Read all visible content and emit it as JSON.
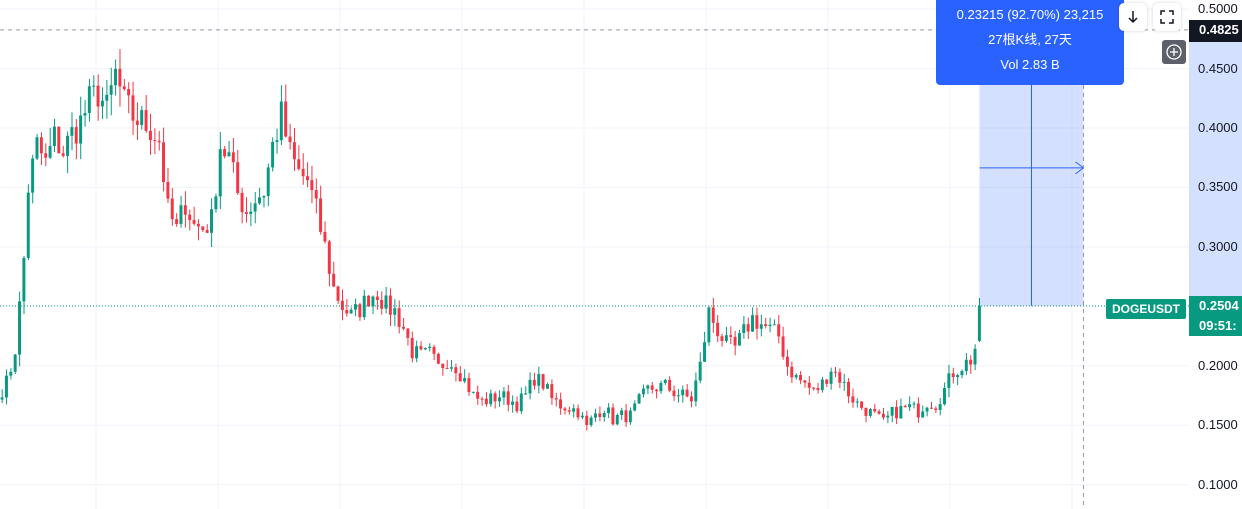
{
  "chart_data": {
    "type": "candlestick",
    "symbol": "DOGEUSDT",
    "y_ticks": [
      "0.5000",
      "0.4500",
      "0.4000",
      "0.3500",
      "0.3000",
      "0.2000",
      "0.1500",
      "0.1000"
    ],
    "ylim": [
      0.0796,
      0.5076
    ],
    "current_price_label": "0.2504",
    "current_price": 0.2504,
    "countdown_label": "09:51:",
    "crosshair_price_label": "0.4825",
    "crosshair_price": 0.4825,
    "measure": {
      "line1": "0.23215 (92.70%) 23,215",
      "line2": "27根K线, 27天",
      "line3": "Vol 2.83 B",
      "from_price": 0.2504,
      "to_price": 0.4825,
      "bars": 27
    },
    "grid": true,
    "anchors": [
      [
        0,
        0.18
      ],
      [
        1,
        0.186
      ],
      [
        2,
        0.198
      ],
      [
        3,
        0.214
      ],
      [
        4,
        0.25
      ],
      [
        5,
        0.29
      ],
      [
        6,
        0.35
      ],
      [
        8,
        0.385
      ],
      [
        10,
        0.37
      ],
      [
        12,
        0.392
      ],
      [
        14,
        0.38
      ],
      [
        16,
        0.395
      ],
      [
        18,
        0.405
      ],
      [
        20,
        0.422
      ],
      [
        22,
        0.43
      ],
      [
        24,
        0.415
      ],
      [
        26,
        0.445
      ],
      [
        28,
        0.42
      ],
      [
        30,
        0.41
      ],
      [
        32,
        0.405
      ],
      [
        34,
        0.4
      ],
      [
        36,
        0.39
      ],
      [
        38,
        0.33
      ],
      [
        40,
        0.314
      ],
      [
        42,
        0.338
      ],
      [
        44,
        0.318
      ],
      [
        46,
        0.316
      ],
      [
        48,
        0.322
      ],
      [
        50,
        0.386
      ],
      [
        52,
        0.375
      ],
      [
        54,
        0.345
      ],
      [
        56,
        0.33
      ],
      [
        58,
        0.34
      ],
      [
        60,
        0.347
      ],
      [
        62,
        0.385
      ],
      [
        64,
        0.41
      ],
      [
        66,
        0.378
      ],
      [
        68,
        0.362
      ],
      [
        70,
        0.356
      ],
      [
        72,
        0.33
      ],
      [
        74,
        0.3
      ],
      [
        76,
        0.265
      ],
      [
        78,
        0.25
      ],
      [
        80,
        0.242
      ],
      [
        82,
        0.248
      ],
      [
        84,
        0.258
      ],
      [
        86,
        0.262
      ],
      [
        88,
        0.25
      ],
      [
        90,
        0.246
      ],
      [
        92,
        0.232
      ],
      [
        94,
        0.212
      ],
      [
        96,
        0.208
      ],
      [
        98,
        0.21
      ],
      [
        100,
        0.198
      ],
      [
        102,
        0.205
      ],
      [
        104,
        0.2
      ],
      [
        106,
        0.188
      ],
      [
        108,
        0.175
      ],
      [
        110,
        0.17
      ],
      [
        112,
        0.172
      ],
      [
        114,
        0.175
      ],
      [
        116,
        0.172
      ],
      [
        118,
        0.168
      ],
      [
        120,
        0.175
      ],
      [
        122,
        0.19
      ],
      [
        124,
        0.185
      ],
      [
        126,
        0.172
      ],
      [
        128,
        0.167
      ],
      [
        130,
        0.165
      ],
      [
        132,
        0.162
      ],
      [
        134,
        0.148
      ],
      [
        136,
        0.16
      ],
      [
        138,
        0.165
      ],
      [
        140,
        0.155
      ],
      [
        142,
        0.158
      ],
      [
        144,
        0.158
      ],
      [
        146,
        0.17
      ],
      [
        148,
        0.18
      ],
      [
        150,
        0.182
      ],
      [
        152,
        0.183
      ],
      [
        154,
        0.178
      ],
      [
        156,
        0.175
      ],
      [
        158,
        0.172
      ],
      [
        160,
        0.2
      ],
      [
        162,
        0.245
      ],
      [
        164,
        0.23
      ],
      [
        166,
        0.218
      ],
      [
        168,
        0.215
      ],
      [
        170,
        0.228
      ],
      [
        172,
        0.24
      ],
      [
        174,
        0.235
      ],
      [
        176,
        0.23
      ],
      [
        178,
        0.225
      ],
      [
        180,
        0.2
      ],
      [
        182,
        0.19
      ],
      [
        184,
        0.185
      ],
      [
        186,
        0.178
      ],
      [
        188,
        0.185
      ],
      [
        190,
        0.198
      ],
      [
        192,
        0.19
      ],
      [
        194,
        0.177
      ],
      [
        196,
        0.168
      ],
      [
        198,
        0.163
      ],
      [
        200,
        0.158
      ],
      [
        202,
        0.152
      ],
      [
        204,
        0.16
      ],
      [
        206,
        0.163
      ],
      [
        208,
        0.165
      ],
      [
        210,
        0.162
      ],
      [
        212,
        0.17
      ],
      [
        214,
        0.168
      ],
      [
        216,
        0.18
      ],
      [
        218,
        0.195
      ],
      [
        220,
        0.2
      ],
      [
        222,
        0.205
      ],
      [
        223,
        0.215
      ],
      [
        224,
        0.2504
      ]
    ]
  }
}
